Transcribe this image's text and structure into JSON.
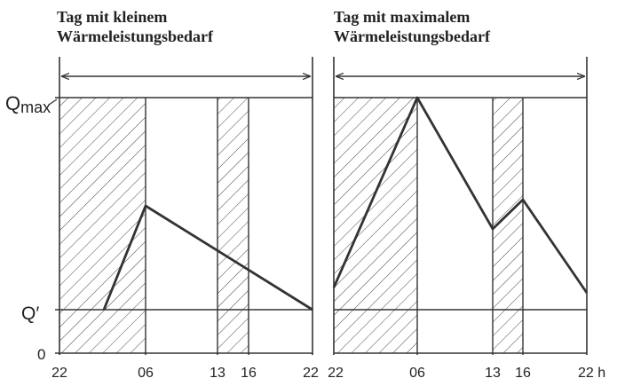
{
  "panels": [
    {
      "title_lines": [
        "Tag mit kleinem",
        "Wärmeleistungsbedarf"
      ],
      "x_tick_labels": [
        "22",
        "06",
        "13",
        "16",
        "22"
      ]
    },
    {
      "title_lines": [
        "Tag mit maximalem",
        "Wärmeleistungsbedarf"
      ],
      "x_tick_labels": [
        "22",
        "06",
        "13",
        "16",
        "22 h"
      ]
    }
  ],
  "y_labels": {
    "qmax_main": "Q",
    "qmax_sub": "max",
    "qprime": "Q′",
    "zero": "0"
  },
  "chart_data": [
    {
      "type": "line",
      "x_hours": [
        22,
        6,
        13,
        16,
        22
      ],
      "shaded_intervals": [
        [
          "22",
          "06"
        ],
        [
          "13",
          "16"
        ]
      ],
      "series": [
        {
          "x": [
            "03",
            "06",
            "22"
          ],
          "y": [
            "Q′",
            0.5,
            "Q′"
          ]
        }
      ]
    },
    {
      "type": "line",
      "x_hours": [
        22,
        6,
        13,
        16,
        22
      ],
      "shaded_intervals": [
        [
          "22",
          "06"
        ],
        [
          "13",
          "16"
        ]
      ],
      "series": [
        {
          "x": [
            "22",
            "06",
            "13",
            "16",
            "22"
          ],
          "y": [
            0.11,
            1.0,
            0.37,
            0.49,
            0.08
          ]
        }
      ]
    }
  ],
  "colors": {
    "line": "#333333",
    "hatch": "#444444",
    "background": "#ffffff"
  }
}
